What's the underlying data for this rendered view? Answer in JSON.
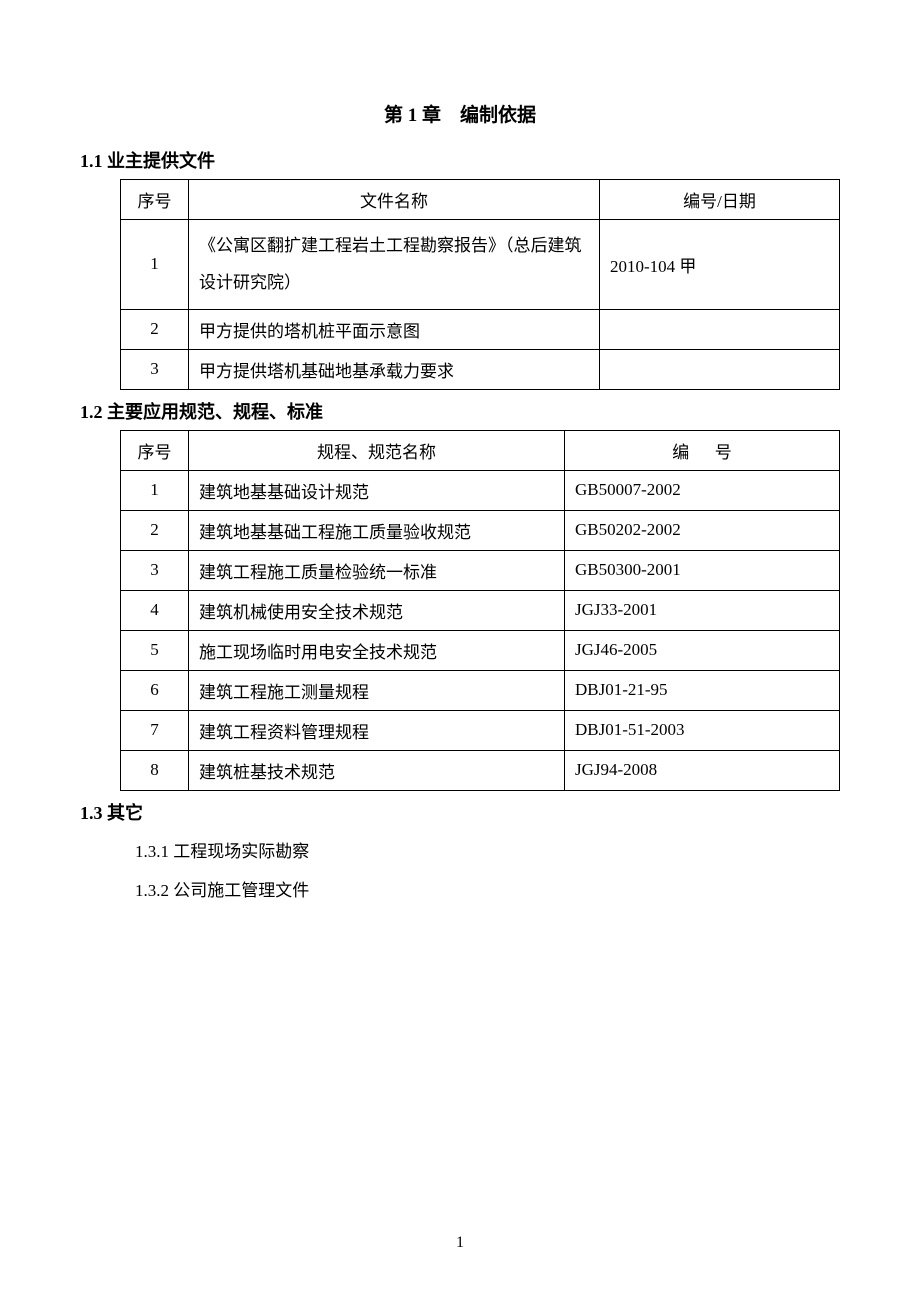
{
  "chapter": {
    "title": "第 1 章　编制依据"
  },
  "section1": {
    "heading": "1.1 业主提供文件",
    "table": {
      "headers": {
        "seq": "序号",
        "name": "文件名称",
        "num": "编号/日期"
      },
      "rows": [
        {
          "seq": "1",
          "name": "《公寓区翻扩建工程岩土工程勘察报告》（总后建筑设计研究院）",
          "num": "2010-104 甲"
        },
        {
          "seq": "2",
          "name": "甲方提供的塔机桩平面示意图",
          "num": ""
        },
        {
          "seq": "3",
          "name": "甲方提供塔机基础地基承载力要求",
          "num": ""
        }
      ]
    }
  },
  "section2": {
    "heading": "1.2 主要应用规范、规程、标准",
    "table": {
      "headers": {
        "seq": "序号",
        "name": "规程、规范名称",
        "num": "编号"
      },
      "rows": [
        {
          "seq": "1",
          "name": "建筑地基基础设计规范",
          "num": "GB50007-2002"
        },
        {
          "seq": "2",
          "name": "建筑地基基础工程施工质量验收规范",
          "num": "GB50202-2002"
        },
        {
          "seq": "3",
          "name": "建筑工程施工质量检验统一标准",
          "num": "GB50300-2001"
        },
        {
          "seq": "4",
          "name": "建筑机械使用安全技术规范",
          "num": "JGJ33-2001"
        },
        {
          "seq": "5",
          "name": "施工现场临时用电安全技术规范",
          "num": "JGJ46-2005"
        },
        {
          "seq": "6",
          "name": "建筑工程施工测量规程",
          "num": "DBJ01-21-95"
        },
        {
          "seq": "7",
          "name": "建筑工程资料管理规程",
          "num": "DBJ01-51-2003"
        },
        {
          "seq": "8",
          "name": "建筑桩基技术规范",
          "num": "JGJ94-2008"
        }
      ]
    }
  },
  "section3": {
    "heading": "1.3 其它",
    "items": [
      "1.3.1 工程现场实际勘察",
      "1.3.2 公司施工管理文件"
    ]
  },
  "pageNumber": "1"
}
